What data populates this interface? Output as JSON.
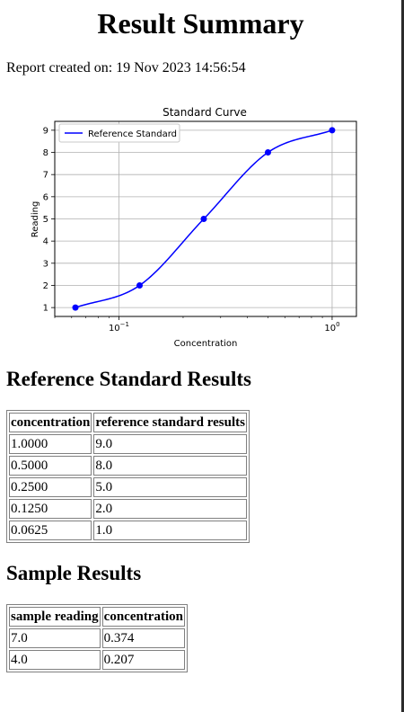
{
  "title": "Result Summary",
  "report": {
    "text": "Report created on: 19 Nov 2023 14:56:54"
  },
  "chart_data": {
    "type": "line",
    "title": "Standard Curve",
    "xlabel": "Concentration",
    "ylabel": "Reading",
    "xscale": "log",
    "xlim": [
      0.05,
      1.3
    ],
    "ylim": [
      0.6,
      9.4
    ],
    "yticks": [
      "1",
      "2",
      "3",
      "4",
      "5",
      "6",
      "7",
      "8",
      "9"
    ],
    "xticks": [
      {
        "value": 0.1,
        "base": "10",
        "exp": "−1"
      },
      {
        "value": 1.0,
        "base": "10",
        "exp": "0"
      }
    ],
    "grid": true,
    "legend_position": "top-left",
    "series": [
      {
        "name": "Reference Standard",
        "color": "#0000ff",
        "x": [
          0.0625,
          0.125,
          0.25,
          0.5,
          1.0
        ],
        "y": [
          1.0,
          2.0,
          5.0,
          8.0,
          9.0
        ]
      }
    ]
  },
  "reference": {
    "heading": "Reference Standard Results",
    "columns": [
      "concentration",
      "reference standard results"
    ],
    "rows": [
      [
        "1.0000",
        "9.0"
      ],
      [
        "0.5000",
        "8.0"
      ],
      [
        "0.2500",
        "5.0"
      ],
      [
        "0.1250",
        "2.0"
      ],
      [
        "0.0625",
        "1.0"
      ]
    ]
  },
  "samples": {
    "heading": "Sample Results",
    "columns": [
      "sample reading",
      "concentration"
    ],
    "rows": [
      [
        "7.0",
        "0.374"
      ],
      [
        "4.0",
        "0.207"
      ]
    ]
  }
}
